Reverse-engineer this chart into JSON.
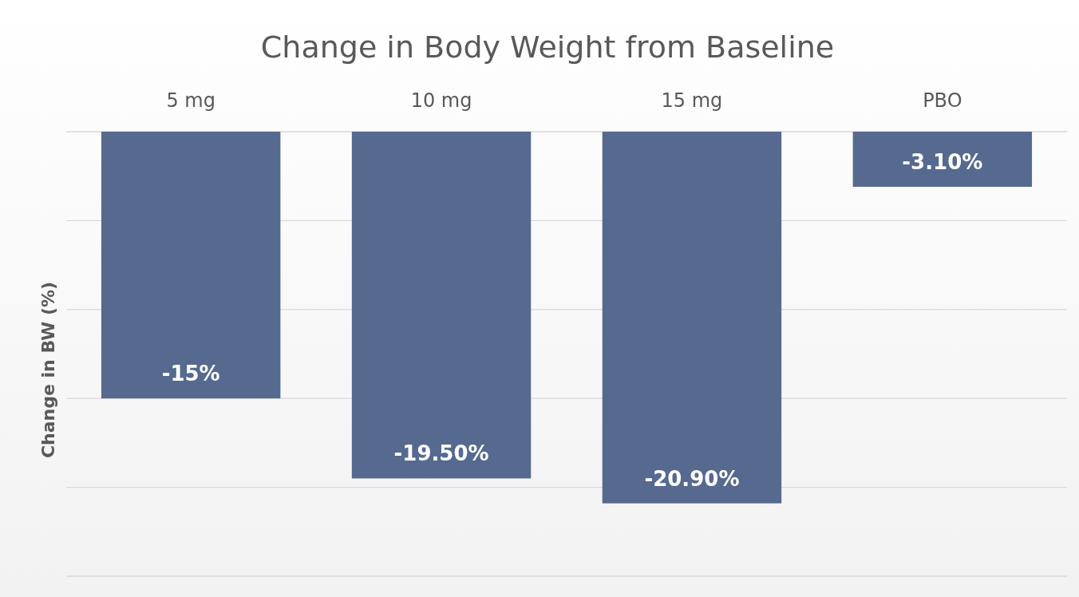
{
  "chart_data": {
    "type": "bar",
    "title": "Change in Body Weight from Baseline",
    "ylabel": "Change in BW (%)",
    "categories": [
      "5 mg",
      "10 mg",
      "15 mg",
      "PBO"
    ],
    "values": [
      -15,
      -19.5,
      -20.9,
      -3.1
    ],
    "value_labels": [
      "-15%",
      "-19.50%",
      "-20.90%",
      "-3.10%"
    ],
    "color": "#56698f",
    "ylim": [
      -25,
      0
    ],
    "yticks": [
      {
        "value": 0,
        "label": null
      },
      {
        "value": -5,
        "label": null
      },
      {
        "value": -10,
        "label": null
      },
      {
        "value": -15,
        "label": null
      },
      {
        "value": -20,
        "label": null
      },
      {
        "value": -25,
        "label": null
      }
    ],
    "grid": "y",
    "tick_labels": "x"
  }
}
